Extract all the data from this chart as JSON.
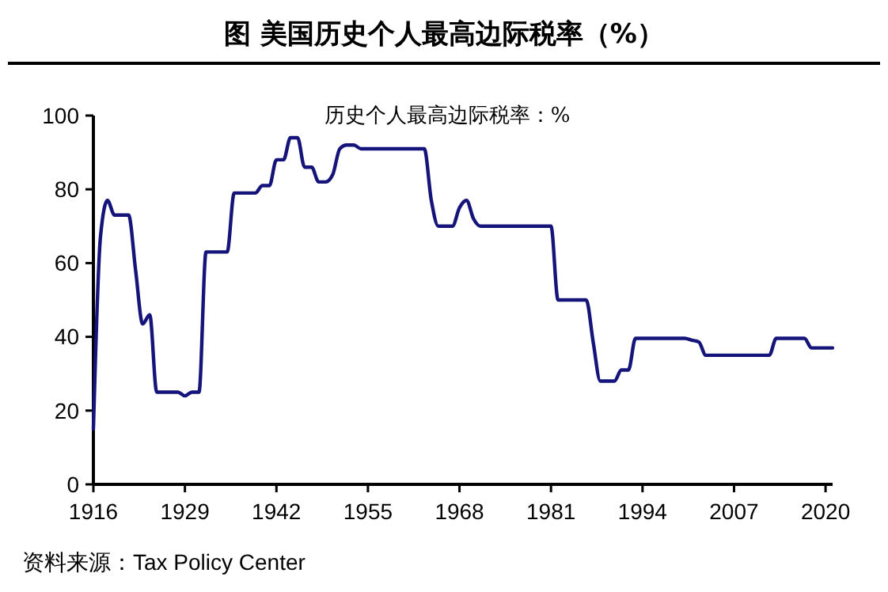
{
  "chart_data": {
    "type": "line",
    "title": "图  美国历史个人最高边际税率（%）",
    "x": [
      1916,
      1917,
      1918,
      1919,
      1920,
      1921,
      1922,
      1923,
      1924,
      1925,
      1926,
      1927,
      1928,
      1929,
      1930,
      1931,
      1932,
      1933,
      1934,
      1935,
      1936,
      1937,
      1938,
      1939,
      1940,
      1941,
      1942,
      1943,
      1944,
      1945,
      1946,
      1947,
      1948,
      1949,
      1950,
      1951,
      1952,
      1953,
      1954,
      1955,
      1956,
      1957,
      1958,
      1959,
      1960,
      1961,
      1962,
      1963,
      1964,
      1965,
      1966,
      1967,
      1968,
      1969,
      1970,
      1971,
      1972,
      1973,
      1974,
      1975,
      1976,
      1977,
      1978,
      1979,
      1980,
      1981,
      1982,
      1983,
      1984,
      1985,
      1986,
      1987,
      1988,
      1989,
      1990,
      1991,
      1992,
      1993,
      1994,
      1995,
      1996,
      1997,
      1998,
      1999,
      2000,
      2001,
      2002,
      2003,
      2004,
      2005,
      2006,
      2007,
      2008,
      2009,
      2010,
      2011,
      2012,
      2013,
      2014,
      2015,
      2016,
      2017,
      2018,
      2019,
      2020,
      2021
    ],
    "series": [
      {
        "color": "#14147a",
        "values": [
          15,
          67,
          77,
          73,
          73,
          73,
          58,
          43.5,
          46,
          25,
          25,
          25,
          25,
          24,
          25,
          25,
          63,
          63,
          63,
          63,
          79,
          79,
          79,
          79,
          81,
          81,
          88,
          88,
          94,
          94,
          86,
          86,
          82,
          82,
          84,
          91,
          92,
          92,
          91,
          91,
          91,
          91,
          91,
          91,
          91,
          91,
          91,
          91,
          77,
          70,
          70,
          70,
          75,
          77,
          72,
          70,
          70,
          70,
          70,
          70,
          70,
          70,
          70,
          70,
          70,
          70,
          50,
          50,
          50,
          50,
          50,
          38.5,
          28,
          28,
          28,
          31,
          31,
          39.6,
          39.6,
          39.6,
          39.6,
          39.6,
          39.6,
          39.6,
          39.6,
          39.1,
          38.6,
          35,
          35,
          35,
          35,
          35,
          35,
          35,
          35,
          35,
          35,
          39.6,
          39.6,
          39.6,
          39.6,
          39.6,
          37,
          37,
          37,
          37
        ]
      }
    ],
    "xlim": [
      1916,
      2021
    ],
    "xticks": [
      1916,
      1929,
      1942,
      1955,
      1968,
      1981,
      1994,
      2007,
      2020
    ],
    "ylim": [
      0,
      100
    ],
    "yticks": [
      0,
      20,
      40,
      60,
      80,
      100
    ],
    "grid": false,
    "marker": "none",
    "line_style": "solid",
    "annotations": [
      "历史个人最高边际税率：%",
      "资料来源：Tax Policy Center"
    ]
  }
}
